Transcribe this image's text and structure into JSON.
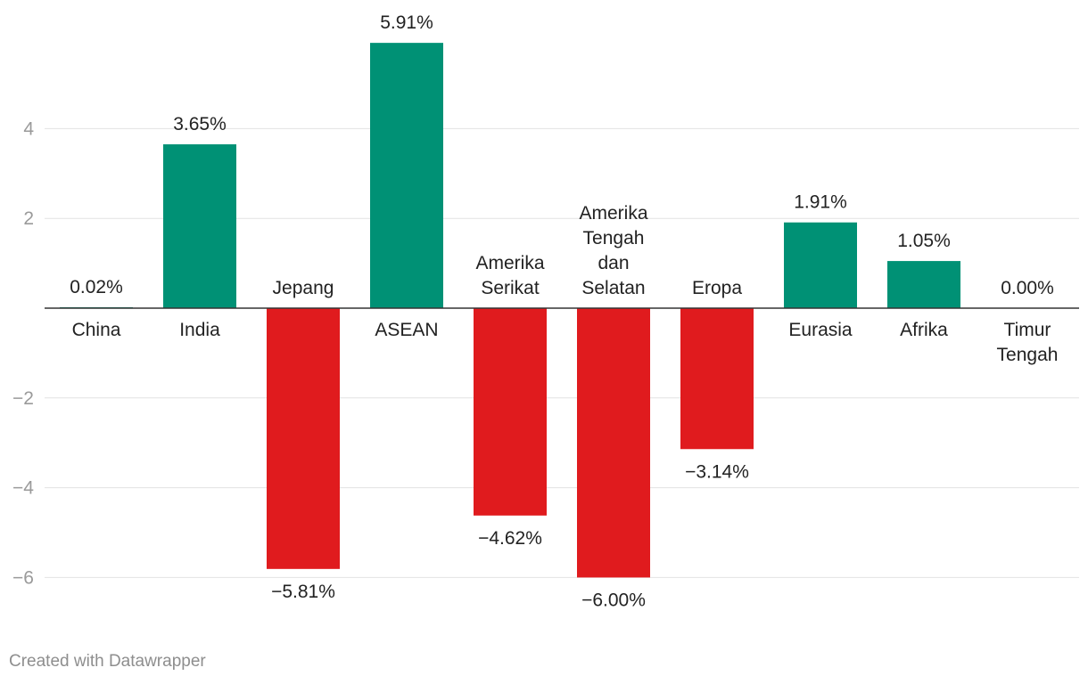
{
  "chart_data": {
    "type": "bar",
    "categories": [
      [
        "China"
      ],
      [
        "India"
      ],
      [
        "Jepang"
      ],
      [
        "ASEAN"
      ],
      [
        "Amerika",
        "Serikat"
      ],
      [
        "Amerika",
        "Tengah",
        "dan",
        "Selatan"
      ],
      [
        "Eropa"
      ],
      [
        "Eurasia"
      ],
      [
        "Afrika"
      ],
      [
        "Timur",
        "Tengah"
      ]
    ],
    "values": [
      0.02,
      3.65,
      -5.81,
      5.91,
      -4.62,
      -6.0,
      -3.14,
      1.91,
      1.05,
      0.0
    ],
    "value_labels": [
      "0.02%",
      "3.65%",
      "−5.81%",
      "5.91%",
      "−4.62%",
      "−6.00%",
      "−3.14%",
      "1.91%",
      "1.05%",
      "0.00%"
    ],
    "y_ticks": [
      4,
      2,
      -2,
      -4,
      -6
    ],
    "y_tick_labels": [
      "4",
      "2",
      "−2",
      "−4",
      "−6"
    ],
    "ylim": [
      -6.5,
      6.5
    ],
    "grid": true,
    "colors": {
      "positive": "#009175",
      "negative": "#e01b1e"
    }
  },
  "footer": {
    "credit": "Created with Datawrapper"
  }
}
